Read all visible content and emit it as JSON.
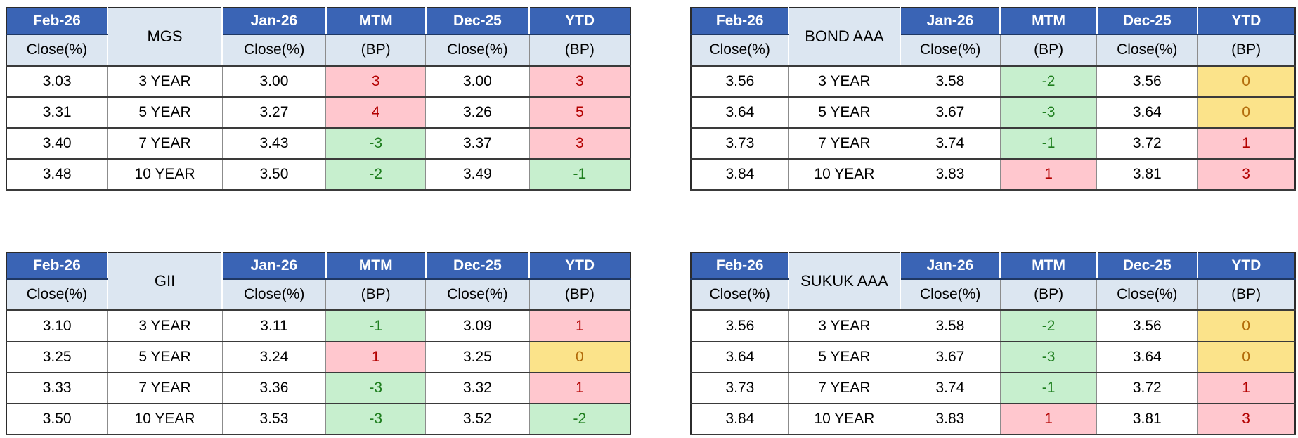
{
  "colors": {
    "header_blue_bg": "#3A64B5",
    "header_blue_text": "#FFFFFF",
    "header_blue_border": "#1F3864",
    "subheader_bg": "#DCE6F1",
    "border_outer": "#2B2B2B",
    "border_dark": "#3A3A3A",
    "border_gray": "#8C8C8C",
    "up_bg": "#FFC7CE",
    "up_text": "#B30000",
    "down_bg": "#C7EFCE",
    "down_text": "#1E7E1E",
    "flat_bg": "#FBE38A",
    "flat_text": "#B26B0A"
  },
  "headers": [
    {
      "label": "Feb-26",
      "sub": "Close(%)"
    },
    {
      "label": "Jan-26",
      "sub": "Close(%)"
    },
    {
      "label": "MTM",
      "sub": "(BP)"
    },
    {
      "label": "Dec-25",
      "sub": "Close(%)"
    },
    {
      "label": "YTD",
      "sub": "(BP)"
    }
  ],
  "tables": [
    {
      "name": "MGS",
      "position": "top-left",
      "rows": [
        {
          "feb_close": "3.03",
          "tenor": "3 YEAR",
          "jan_close": "3.00",
          "mtm_bp": "3",
          "mtm_state": "up",
          "dec_close": "3.00",
          "ytd_bp": "3",
          "ytd_state": "up"
        },
        {
          "feb_close": "3.31",
          "tenor": "5 YEAR",
          "jan_close": "3.27",
          "mtm_bp": "4",
          "mtm_state": "up",
          "dec_close": "3.26",
          "ytd_bp": "5",
          "ytd_state": "up"
        },
        {
          "feb_close": "3.40",
          "tenor": "7 YEAR",
          "jan_close": "3.43",
          "mtm_bp": "-3",
          "mtm_state": "down",
          "dec_close": "3.37",
          "ytd_bp": "3",
          "ytd_state": "up"
        },
        {
          "feb_close": "3.48",
          "tenor": "10 YEAR",
          "jan_close": "3.50",
          "mtm_bp": "-2",
          "mtm_state": "down",
          "dec_close": "3.49",
          "ytd_bp": "-1",
          "ytd_state": "down"
        }
      ]
    },
    {
      "name": "BOND AAA",
      "position": "top-right",
      "rows": [
        {
          "feb_close": "3.56",
          "tenor": "3 YEAR",
          "jan_close": "3.58",
          "mtm_bp": "-2",
          "mtm_state": "down",
          "dec_close": "3.56",
          "ytd_bp": "0",
          "ytd_state": "flat"
        },
        {
          "feb_close": "3.64",
          "tenor": "5 YEAR",
          "jan_close": "3.67",
          "mtm_bp": "-3",
          "mtm_state": "down",
          "dec_close": "3.64",
          "ytd_bp": "0",
          "ytd_state": "flat"
        },
        {
          "feb_close": "3.73",
          "tenor": "7 YEAR",
          "jan_close": "3.74",
          "mtm_bp": "-1",
          "mtm_state": "down",
          "dec_close": "3.72",
          "ytd_bp": "1",
          "ytd_state": "up"
        },
        {
          "feb_close": "3.84",
          "tenor": "10 YEAR",
          "jan_close": "3.83",
          "mtm_bp": "1",
          "mtm_state": "up",
          "dec_close": "3.81",
          "ytd_bp": "3",
          "ytd_state": "up"
        }
      ]
    },
    {
      "name": "GII",
      "position": "bottom-left",
      "rows": [
        {
          "feb_close": "3.10",
          "tenor": "3 YEAR",
          "jan_close": "3.11",
          "mtm_bp": "-1",
          "mtm_state": "down",
          "dec_close": "3.09",
          "ytd_bp": "1",
          "ytd_state": "up"
        },
        {
          "feb_close": "3.25",
          "tenor": "5 YEAR",
          "jan_close": "3.24",
          "mtm_bp": "1",
          "mtm_state": "up",
          "dec_close": "3.25",
          "ytd_bp": "0",
          "ytd_state": "flat"
        },
        {
          "feb_close": "3.33",
          "tenor": "7 YEAR",
          "jan_close": "3.36",
          "mtm_bp": "-3",
          "mtm_state": "down",
          "dec_close": "3.32",
          "ytd_bp": "1",
          "ytd_state": "up"
        },
        {
          "feb_close": "3.50",
          "tenor": "10 YEAR",
          "jan_close": "3.53",
          "mtm_bp": "-3",
          "mtm_state": "down",
          "dec_close": "3.52",
          "ytd_bp": "-2",
          "ytd_state": "down"
        }
      ]
    },
    {
      "name": "SUKUK AAA",
      "position": "bottom-right",
      "rows": [
        {
          "feb_close": "3.56",
          "tenor": "3 YEAR",
          "jan_close": "3.58",
          "mtm_bp": "-2",
          "mtm_state": "down",
          "dec_close": "3.56",
          "ytd_bp": "0",
          "ytd_state": "flat"
        },
        {
          "feb_close": "3.64",
          "tenor": "5 YEAR",
          "jan_close": "3.67",
          "mtm_bp": "-3",
          "mtm_state": "down",
          "dec_close": "3.64",
          "ytd_bp": "0",
          "ytd_state": "flat"
        },
        {
          "feb_close": "3.73",
          "tenor": "7 YEAR",
          "jan_close": "3.74",
          "mtm_bp": "-1",
          "mtm_state": "down",
          "dec_close": "3.72",
          "ytd_bp": "1",
          "ytd_state": "up"
        },
        {
          "feb_close": "3.84",
          "tenor": "10 YEAR",
          "jan_close": "3.83",
          "mtm_bp": "1",
          "mtm_state": "up",
          "dec_close": "3.81",
          "ytd_bp": "3",
          "ytd_state": "up"
        }
      ]
    }
  ]
}
